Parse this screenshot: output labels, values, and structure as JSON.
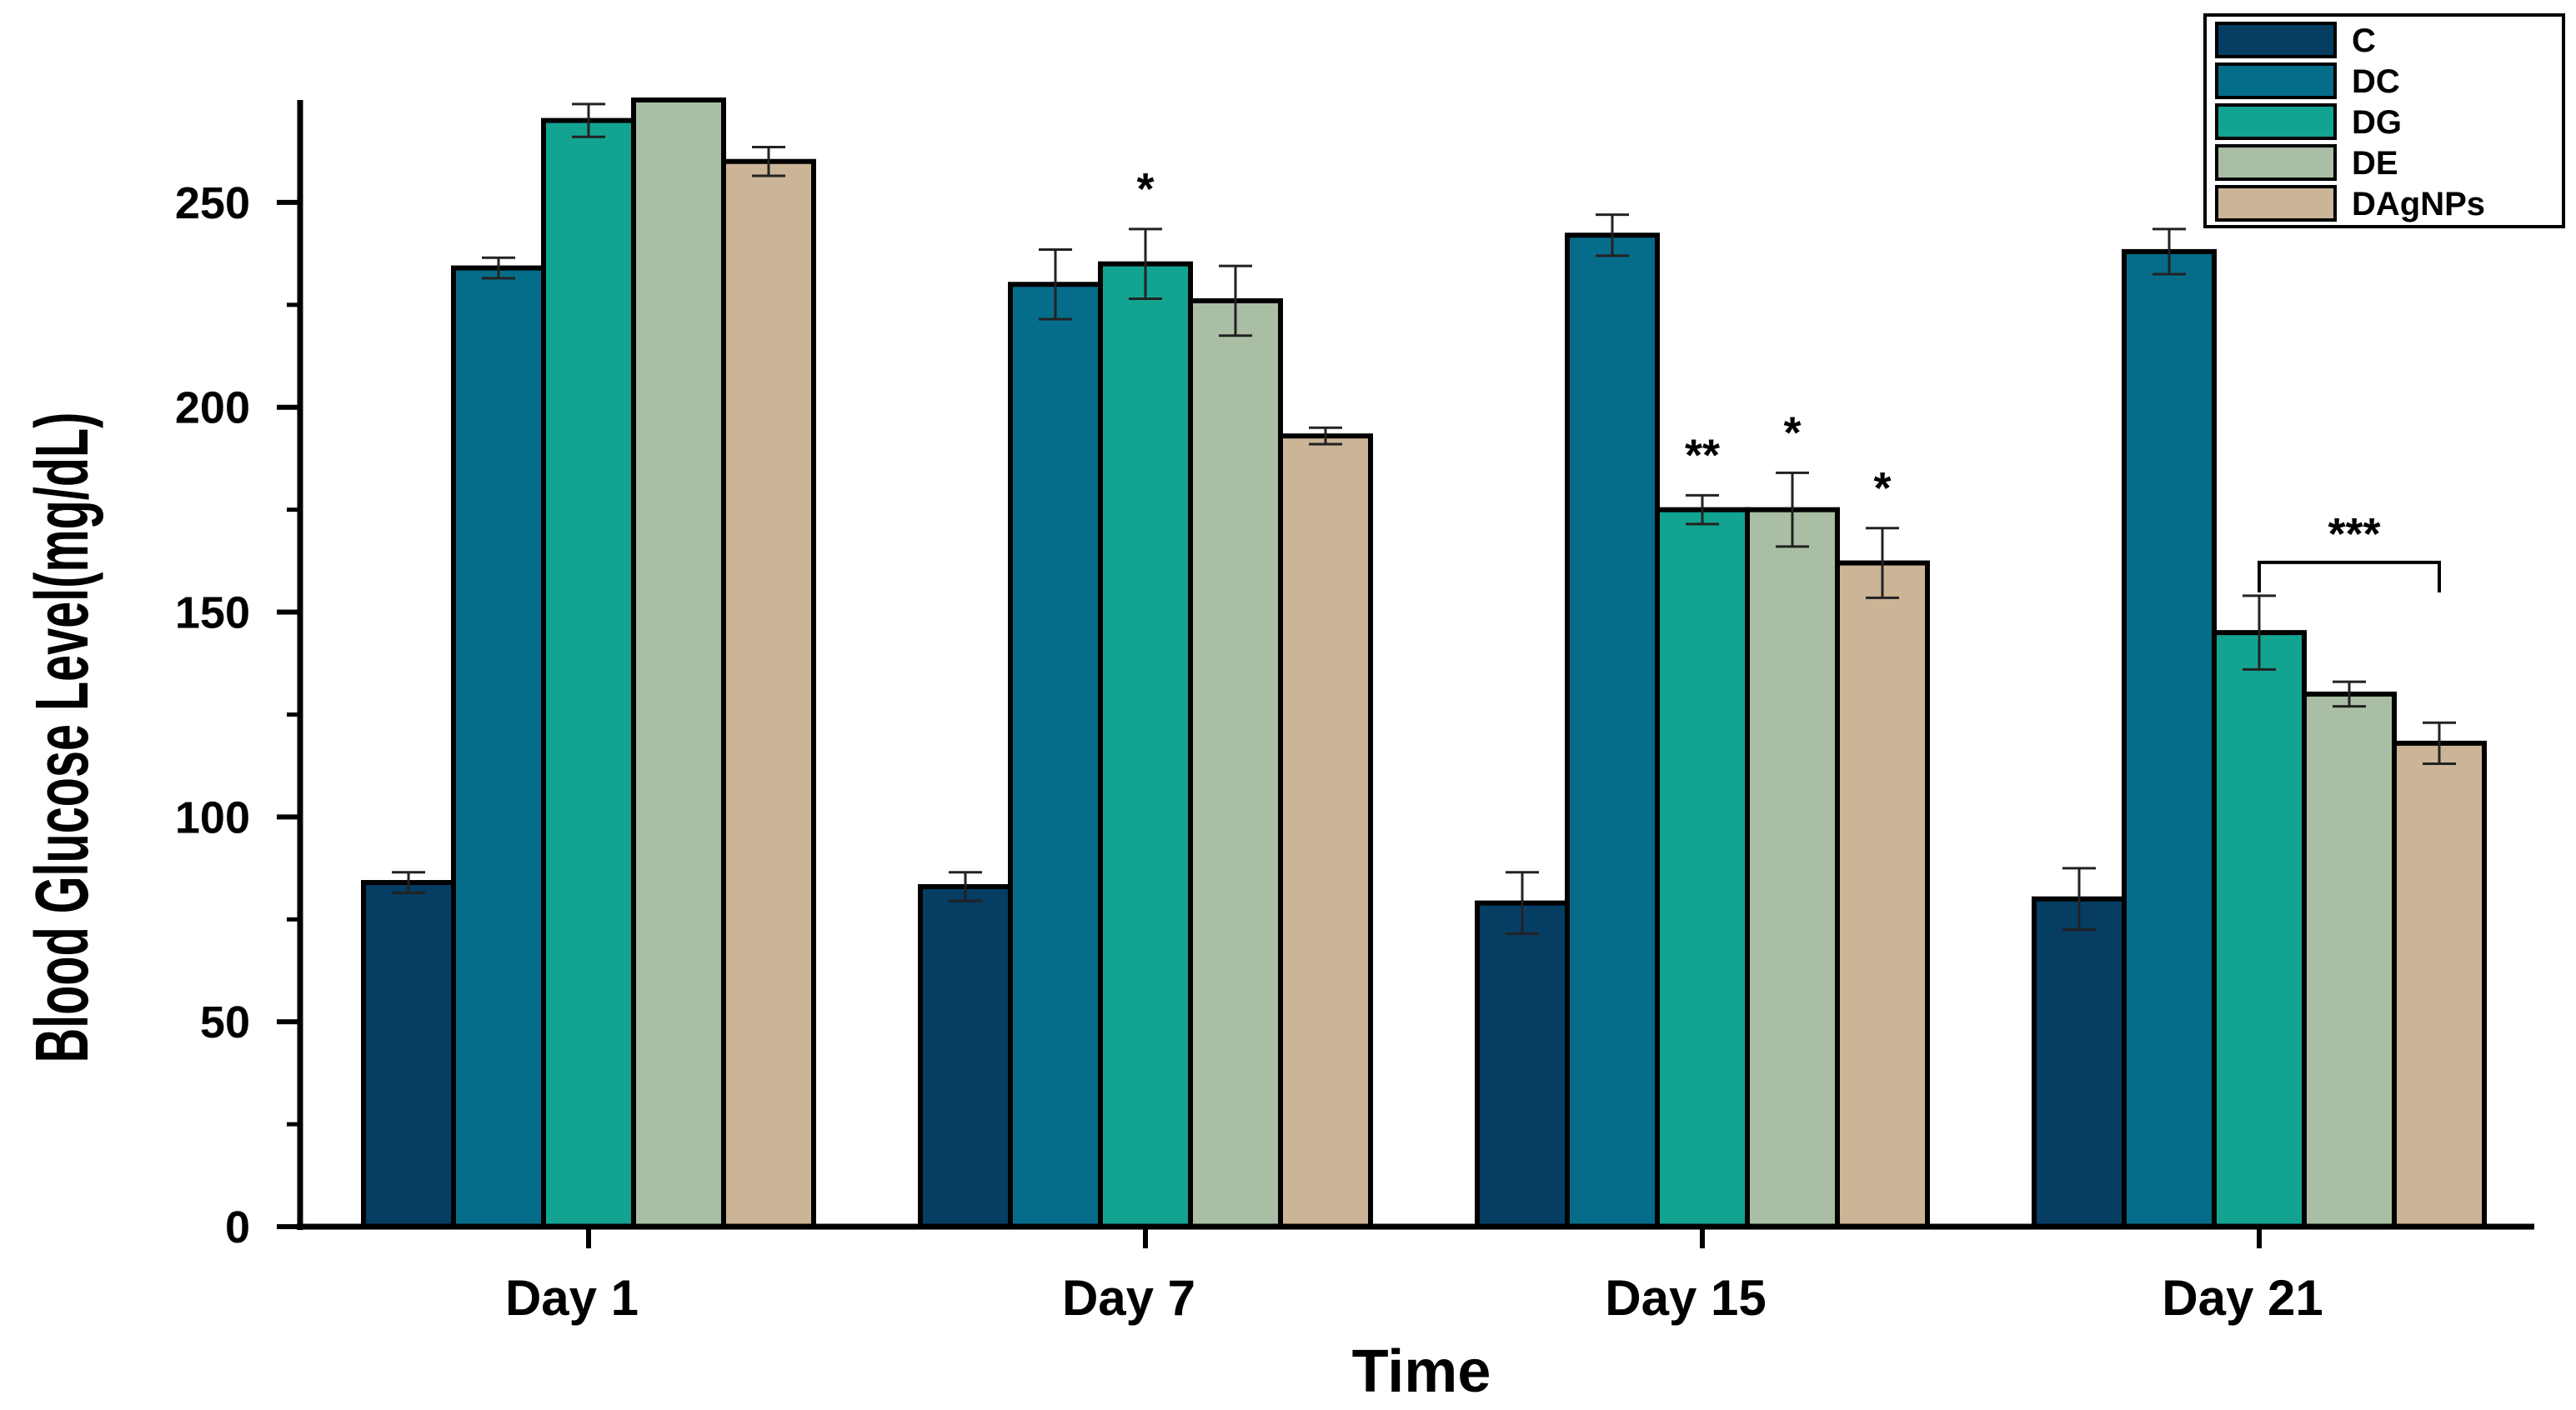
{
  "chart_data": {
    "type": "bar",
    "title": "",
    "xlabel": "Time",
    "ylabel": "Blood Glucose Level(mg/dL)",
    "ylim": [
      0,
      275
    ],
    "yticks": [
      0,
      50,
      100,
      150,
      200,
      250
    ],
    "yticks_minor": [
      25,
      75,
      125,
      175,
      225
    ],
    "grid": false,
    "legend_position": "top-right",
    "categories": [
      "Day 1",
      "Day 7",
      "Day 15",
      "Day 21"
    ],
    "series": [
      {
        "name": "C",
        "color": "#053d63",
        "values": [
          84,
          83,
          79,
          80
        ],
        "errors": [
          2.5,
          3.5,
          7.5,
          7.5
        ]
      },
      {
        "name": "DC",
        "color": "#056c8a",
        "values": [
          234,
          230,
          242,
          238
        ],
        "errors": [
          2.5,
          8.5,
          5,
          5.5
        ]
      },
      {
        "name": "DG",
        "color": "#13a391",
        "values": [
          270,
          235,
          175,
          145
        ],
        "errors": [
          4,
          8.5,
          3.5,
          9
        ]
      },
      {
        "name": "DE",
        "color": "#a9bea4",
        "values": [
          275,
          226,
          175,
          130
        ],
        "errors": [
          0,
          8.5,
          9,
          3
        ]
      },
      {
        "name": "DAgNPs",
        "color": "#cbb596",
        "values": [
          260,
          193,
          162,
          118
        ],
        "errors": [
          3.5,
          2,
          8.5,
          5
        ]
      }
    ],
    "annotations": [
      {
        "text": "*",
        "category": "Day 7",
        "series": "DG"
      },
      {
        "text": "**",
        "category": "Day 15",
        "series": "DG"
      },
      {
        "text": "*",
        "category": "Day 15",
        "series": "DE"
      },
      {
        "text": "*",
        "category": "Day 15",
        "series": "DAgNPs"
      },
      {
        "text": "***",
        "category": "Day 21",
        "series_span": [
          "DG",
          "DAgNPs"
        ]
      }
    ]
  }
}
